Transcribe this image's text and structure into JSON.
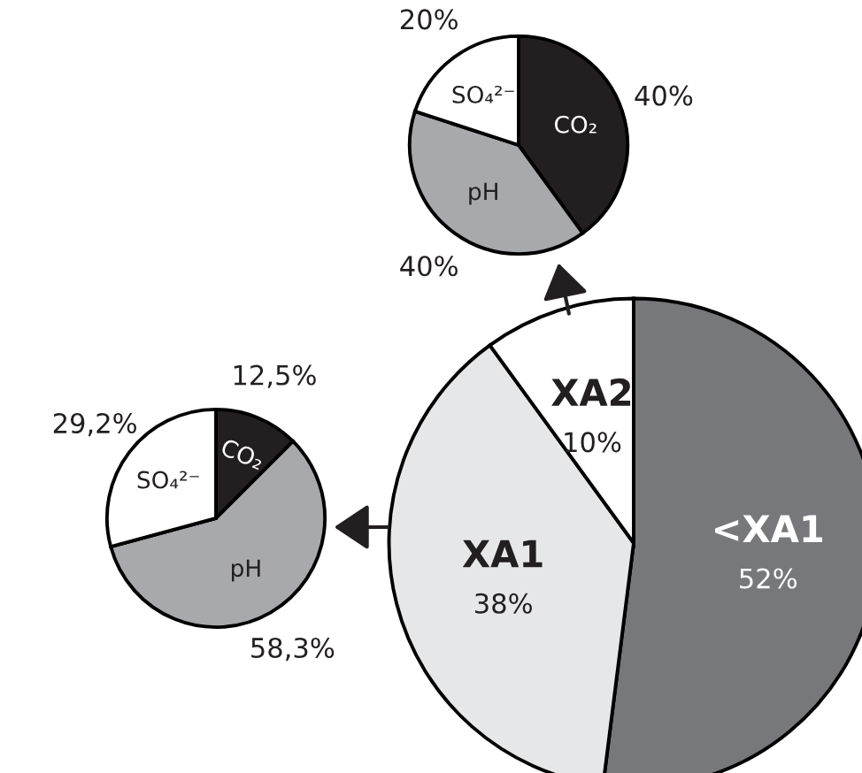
{
  "chart_data": [
    {
      "type": "pie",
      "categories": [
        "CO₂",
        "pH",
        "SO₄²⁻"
      ],
      "values": [
        40,
        40,
        20
      ],
      "value_labels": [
        "40%",
        "40%",
        "20%"
      ],
      "colors": [
        "#231f20",
        "#a7a9ac",
        "#ffffff"
      ]
    },
    {
      "type": "pie",
      "categories": [
        "CO₂",
        "pH",
        "SO₄²⁻"
      ],
      "values": [
        12.5,
        58.3,
        29.2
      ],
      "value_labels": [
        "12,5%",
        "58,3%",
        "29,2%"
      ],
      "colors": [
        "#231f20",
        "#a7a9ac",
        "#ffffff"
      ]
    },
    {
      "type": "pie",
      "categories": [
        "<XA1",
        "XA1",
        "XA2"
      ],
      "values": [
        52,
        38,
        10
      ],
      "value_labels": [
        "52%",
        "38%",
        "10%"
      ],
      "colors": [
        "#77787b",
        "#e6e7e8",
        "#ffffff"
      ]
    }
  ]
}
